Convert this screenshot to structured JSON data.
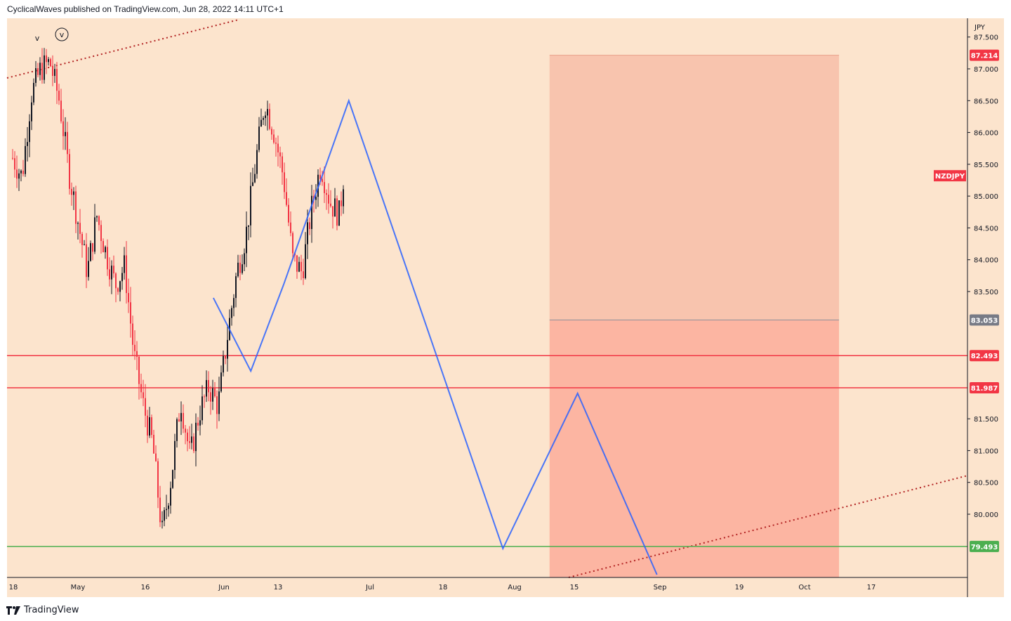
{
  "header": {
    "text": "CyclicalWaves published on TradingView.com, Jun 28, 2022 14:11 UTC+1"
  },
  "footer": {
    "brand": "TradingView"
  },
  "chart_data": {
    "type": "candlestick",
    "symbol": "NZDJPY",
    "currency": "JPY",
    "y_range": [
      79.05,
      87.92
    ],
    "x_labels": [
      "18",
      "May",
      "16",
      "Jun",
      "13",
      "Jul",
      "18",
      "Aug",
      "15",
      "Sep",
      "19",
      "Oct",
      "17"
    ],
    "y_ticks": [
      "87.500",
      "87.000",
      "86.500",
      "86.000",
      "85.500",
      "85.000",
      "84.500",
      "84.000",
      "83.500",
      "81.500",
      "81.000",
      "80.500",
      "80.000"
    ],
    "price_tags": [
      {
        "label": "87.214",
        "value": 87.214,
        "color": "#f23645"
      },
      {
        "label": "83.053",
        "value": 83.053,
        "color": "#787b86"
      },
      {
        "label": "82.493",
        "value": 82.493,
        "color": "#f23645"
      },
      {
        "label": "81.987",
        "value": 81.987,
        "color": "#f23645"
      },
      {
        "label": "79.493",
        "value": 79.493,
        "color": "#4caf50"
      }
    ],
    "symbol_tag": {
      "label": "NZDJPY",
      "value": 85.32,
      "color": "#f23645"
    },
    "horizontal_lines": [
      {
        "value": 82.493,
        "color": "#f23645"
      },
      {
        "value": 81.987,
        "color": "#f23645"
      },
      {
        "value": 79.493,
        "color": "#4caf50"
      }
    ],
    "wave_labels": [
      "v",
      "v"
    ],
    "projected_path": [
      {
        "date": "2022-05-31",
        "price": 83.4
      },
      {
        "date": "2022-06-08",
        "price": 82.25
      },
      {
        "date": "2022-06-15",
        "price": 83.6
      },
      {
        "date": "2022-06-29",
        "price": 86.5
      },
      {
        "date": "2022-08-01",
        "price": 79.46
      },
      {
        "date": "2022-08-17",
        "price": 81.9
      },
      {
        "date": "2022-09-03",
        "price": 79.05
      }
    ],
    "position_box": {
      "start": "2022-08-11",
      "end": "2022-10-12",
      "stop": 87.214,
      "entry": 83.053,
      "target": 79.05
    },
    "candles_anchor_points": [
      {
        "date": "2022-04-18",
        "price": 85.6
      },
      {
        "date": "2022-04-20",
        "price": 85.3
      },
      {
        "date": "2022-04-22",
        "price": 86.6
      },
      {
        "date": "2022-04-24",
        "price": 87.0
      },
      {
        "date": "2022-04-26",
        "price": 87.1
      },
      {
        "date": "2022-04-28",
        "price": 86.5
      },
      {
        "date": "2022-04-30",
        "price": 85.4
      },
      {
        "date": "2022-05-02",
        "price": 84.6
      },
      {
        "date": "2022-05-04",
        "price": 83.8
      },
      {
        "date": "2022-05-06",
        "price": 84.7
      },
      {
        "date": "2022-05-08",
        "price": 84.1
      },
      {
        "date": "2022-05-10",
        "price": 83.6
      },
      {
        "date": "2022-05-12",
        "price": 83.9
      },
      {
        "date": "2022-05-14",
        "price": 82.5
      },
      {
        "date": "2022-05-16",
        "price": 81.7
      },
      {
        "date": "2022-05-18",
        "price": 81.1
      },
      {
        "date": "2022-05-20",
        "price": 79.7
      },
      {
        "date": "2022-05-22",
        "price": 80.6
      },
      {
        "date": "2022-05-24",
        "price": 81.8
      },
      {
        "date": "2022-05-26",
        "price": 80.9
      },
      {
        "date": "2022-05-28",
        "price": 81.6
      },
      {
        "date": "2022-05-30",
        "price": 82.0
      },
      {
        "date": "2022-06-01",
        "price": 81.7
      },
      {
        "date": "2022-06-03",
        "price": 82.8
      },
      {
        "date": "2022-06-05",
        "price": 83.8
      },
      {
        "date": "2022-06-07",
        "price": 84.4
      },
      {
        "date": "2022-06-09",
        "price": 85.5
      },
      {
        "date": "2022-06-11",
        "price": 86.5
      },
      {
        "date": "2022-06-13",
        "price": 86.0
      },
      {
        "date": "2022-06-15",
        "price": 85.3
      },
      {
        "date": "2022-06-17",
        "price": 84.0
      },
      {
        "date": "2022-06-19",
        "price": 83.8
      },
      {
        "date": "2022-06-21",
        "price": 84.8
      },
      {
        "date": "2022-06-23",
        "price": 85.5
      },
      {
        "date": "2022-06-25",
        "price": 84.9
      },
      {
        "date": "2022-06-27",
        "price": 84.7
      },
      {
        "date": "2022-06-28",
        "price": 85.4
      }
    ]
  }
}
